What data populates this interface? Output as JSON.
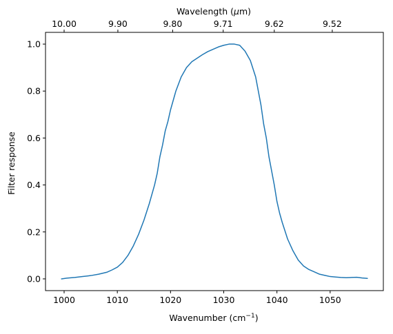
{
  "chart_data": {
    "type": "line",
    "title": "",
    "xlabel": "Wavenumber (cm",
    "xlabel_sup": "−1",
    "xlabel_end": ")",
    "ylabel": "Filter response",
    "top_axis_label": "Wavelength (",
    "top_axis_label_mu": "μ",
    "top_axis_label_end": "m)",
    "xlim": [
      996.5,
      1060.0
    ],
    "ylim": [
      -0.05,
      1.05
    ],
    "grid": false,
    "line_color": "#1f77b4",
    "x_ticks": [
      {
        "value": 1000,
        "label": "1000"
      },
      {
        "value": 1010,
        "label": "1010"
      },
      {
        "value": 1020,
        "label": "1020"
      },
      {
        "value": 1030,
        "label": "1030"
      },
      {
        "value": 1040,
        "label": "1040"
      },
      {
        "value": 1050,
        "label": "1050"
      }
    ],
    "y_ticks": [
      {
        "value": 0.0,
        "label": "0.0"
      },
      {
        "value": 0.2,
        "label": "0.2"
      },
      {
        "value": 0.4,
        "label": "0.4"
      },
      {
        "value": 0.6,
        "label": "0.6"
      },
      {
        "value": 0.8,
        "label": "0.8"
      },
      {
        "value": 1.0,
        "label": "1.0"
      }
    ],
    "top_ticks": [
      {
        "wavenumber": 1000.0,
        "label": "10.00"
      },
      {
        "wavenumber": 1010.1,
        "label": "9.90"
      },
      {
        "wavenumber": 1020.4,
        "label": "9.80"
      },
      {
        "wavenumber": 1029.9,
        "label": "9.71"
      },
      {
        "wavenumber": 1039.5,
        "label": "9.62"
      },
      {
        "wavenumber": 1050.4,
        "label": "9.52"
      }
    ],
    "series": [
      {
        "x": [
          999.5,
          1000.5,
          1002.0,
          1003.5,
          1005.0,
          1006.5,
          1008.0,
          1009.0,
          1010.0,
          1011.0,
          1012.0,
          1013.0,
          1014.0,
          1015.0,
          1016.0,
          1017.0,
          1017.5,
          1018.0,
          1018.5,
          1019.0,
          1019.5,
          1020.0,
          1020.5,
          1021.0,
          1022.0,
          1023.0,
          1024.0,
          1025.0,
          1026.0,
          1027.0,
          1028.0,
          1029.0,
          1030.0,
          1031.0,
          1032.0,
          1033.0,
          1034.0,
          1035.0,
          1036.0,
          1036.5,
          1037.0,
          1037.5,
          1038.0,
          1038.5,
          1039.0,
          1039.5,
          1040.0,
          1040.5,
          1041.0,
          1042.0,
          1043.0,
          1044.0,
          1045.0,
          1046.0,
          1047.0,
          1048.0,
          1049.0,
          1050.0,
          1051.0,
          1052.0,
          1053.0,
          1054.0,
          1055.0,
          1056.0,
          1057.0
        ],
        "y": [
          0.0,
          0.003,
          0.006,
          0.01,
          0.014,
          0.02,
          0.028,
          0.038,
          0.05,
          0.07,
          0.1,
          0.14,
          0.19,
          0.25,
          0.32,
          0.4,
          0.45,
          0.52,
          0.57,
          0.63,
          0.67,
          0.72,
          0.76,
          0.8,
          0.86,
          0.9,
          0.925,
          0.94,
          0.955,
          0.968,
          0.978,
          0.988,
          0.995,
          1.0,
          1.0,
          0.995,
          0.97,
          0.93,
          0.86,
          0.8,
          0.74,
          0.66,
          0.6,
          0.52,
          0.46,
          0.4,
          0.33,
          0.28,
          0.24,
          0.17,
          0.12,
          0.08,
          0.055,
          0.04,
          0.03,
          0.02,
          0.015,
          0.01,
          0.008,
          0.006,
          0.005,
          0.006,
          0.007,
          0.004,
          0.002
        ]
      }
    ]
  }
}
